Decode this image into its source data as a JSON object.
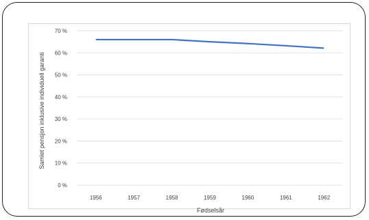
{
  "chart_data": {
    "type": "line",
    "title": "",
    "xlabel": "Fødselsår",
    "ylabel": "Samlet pensjon inklusive individuell garanti",
    "categories": [
      "1956",
      "1957",
      "1958",
      "1959",
      "1960",
      "1961",
      "1962"
    ],
    "y_ticks": [
      "0 %",
      "10 %",
      "20 %",
      "30 %",
      "40 %",
      "50 %",
      "60 %",
      "70 %"
    ],
    "ylim": [
      0,
      70
    ],
    "grid": true,
    "series": [
      {
        "values": [
          66,
          66,
          66,
          65,
          64.2,
          63.2,
          62.1
        ]
      }
    ],
    "colors": {
      "line": "#4472c4",
      "grid": "#d9d9d9",
      "text": "#404040"
    }
  }
}
